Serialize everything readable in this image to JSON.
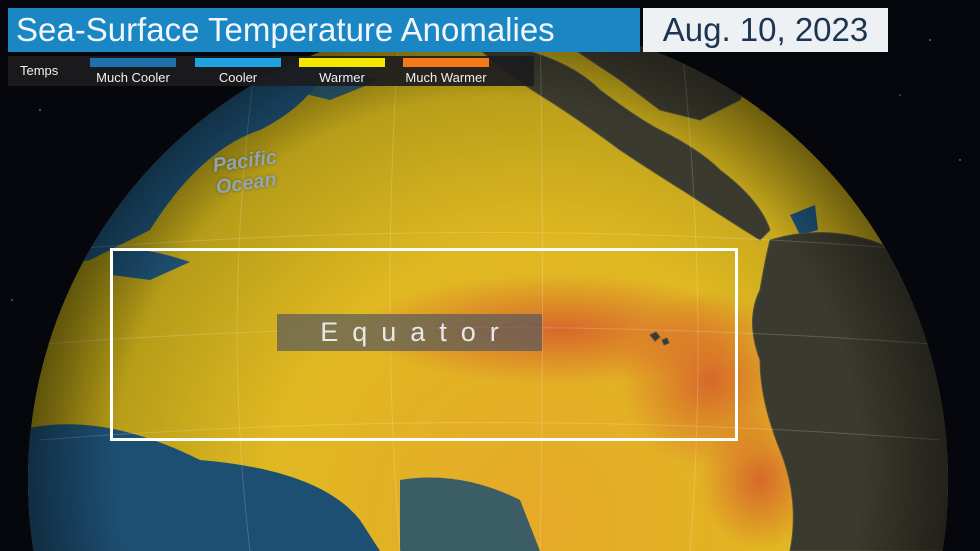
{
  "header": {
    "title": "Sea-Surface Temperature Anomalies",
    "date": "Aug. 10, 2023"
  },
  "legend": {
    "label": "Temps",
    "items": [
      {
        "label": "Much Cooler",
        "color": "#1e6fae"
      },
      {
        "label": "Cooler",
        "color": "#1ea3e0"
      },
      {
        "label": "Warmer",
        "color": "#f5e800"
      },
      {
        "label": "Much Warmer",
        "color": "#f57a1a"
      }
    ]
  },
  "map": {
    "ocean_label": "Pacific Ocean",
    "region_label": "Equator",
    "colors": {
      "warm": "#e8c21a",
      "much_warm": "#d8682a",
      "cool": "#1d4f72",
      "land": "#3a3a30",
      "space": "#05070c"
    }
  }
}
